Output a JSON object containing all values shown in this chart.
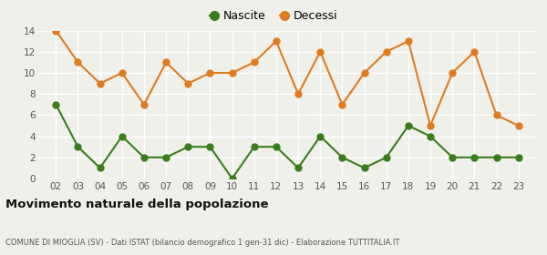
{
  "years": [
    2,
    3,
    4,
    5,
    6,
    7,
    8,
    9,
    10,
    11,
    12,
    13,
    14,
    15,
    16,
    17,
    18,
    19,
    20,
    21,
    22,
    23
  ],
  "nascite": [
    7,
    3,
    1,
    4,
    2,
    2,
    3,
    3,
    0,
    3,
    3,
    1,
    4,
    2,
    1,
    2,
    5,
    4,
    2,
    2,
    2,
    2
  ],
  "decessi": [
    14,
    11,
    9,
    10,
    7,
    11,
    9,
    10,
    10,
    11,
    13,
    8,
    12,
    7,
    10,
    12,
    13,
    5,
    10,
    12,
    6,
    5
  ],
  "nascite_color": "#3a7d1e",
  "decessi_color": "#e07b20",
  "title": "Movimento naturale della popolazione",
  "subtitle": "COMUNE DI MIOGLIA (SV) - Dati ISTAT (bilancio demografico 1 gen-31 dic) - Elaborazione TUTTITALIA.IT",
  "ylim": [
    0,
    14
  ],
  "yticks": [
    0,
    2,
    4,
    6,
    8,
    10,
    12,
    14
  ],
  "legend_nascite": "Nascite",
  "legend_decessi": "Decessi",
  "bg_color": "#f0f0eb",
  "marker_size": 5,
  "linewidth": 1.5
}
